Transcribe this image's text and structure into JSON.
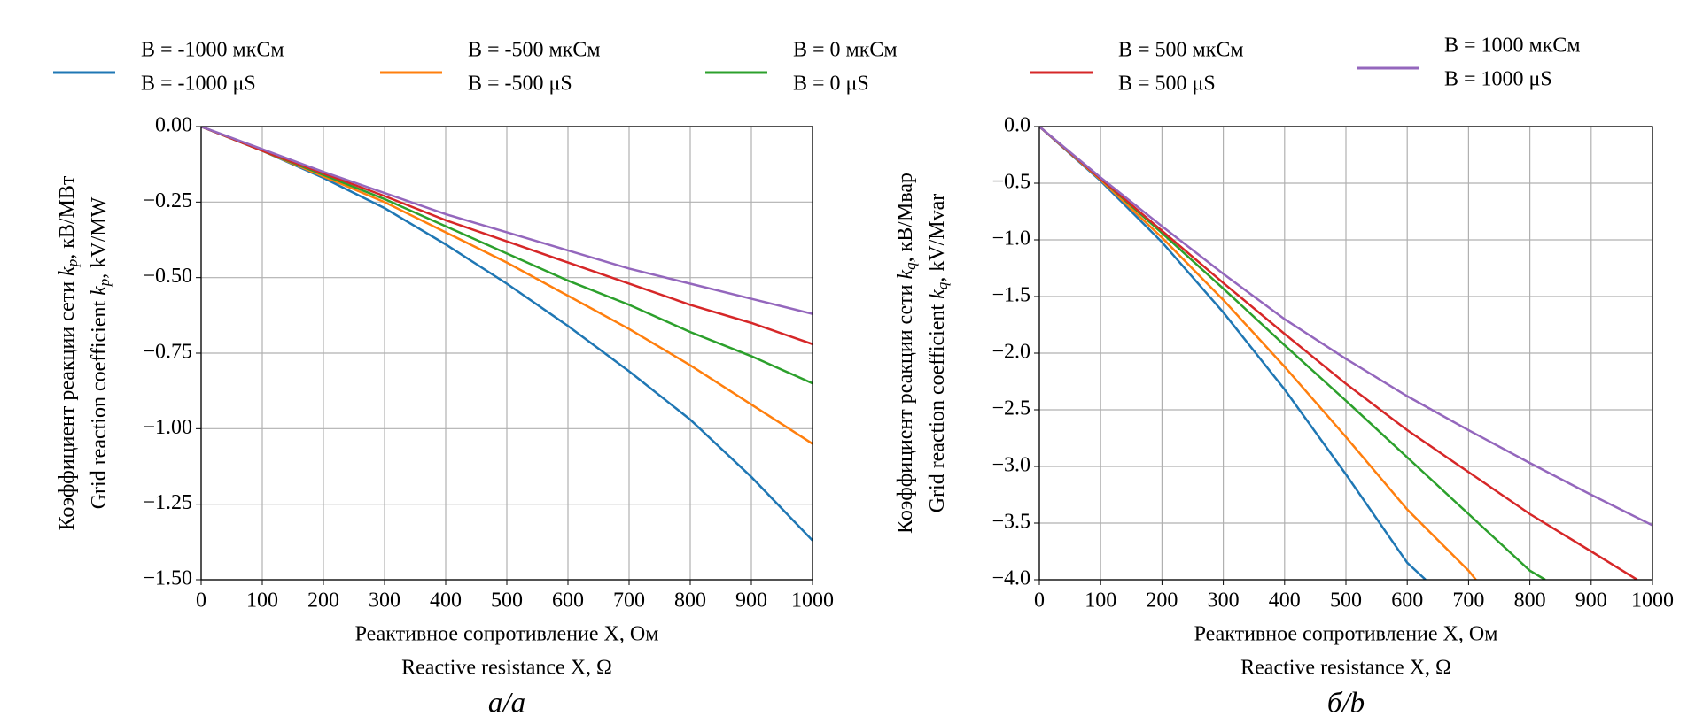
{
  "legend": [
    {
      "label": [
        "B = -1000 мкСм",
        "B = -1000 μS"
      ],
      "color": "#1f77b4"
    },
    {
      "label": [
        "B = -500 мкСм",
        "B = -500 μS"
      ],
      "color": "#ff7f0e"
    },
    {
      "label": [
        "B = 0 мкСм",
        "B = 0 μS"
      ],
      "color": "#2ca02c"
    },
    {
      "label": [
        "B = 500 мкСм",
        "B = 500 μS"
      ],
      "color": "#d62728"
    },
    {
      "label": [
        "B = 1000 мкСм",
        "B = 1000 μS"
      ],
      "color": "#9467bd"
    }
  ],
  "chart_data": [
    {
      "type": "line",
      "caption": "а/a",
      "xlabel": [
        "Реактивное сопротивление X, Ом",
        "Reactive resistance X, Ω"
      ],
      "ylabel": [
        {
          "pre": "Коэффициент реакции сети ",
          "sym": "k",
          "sub": "p",
          "post": ", кВ/МВт"
        },
        {
          "pre": "Grid reaction coefficient ",
          "sym": "k",
          "sub": "p",
          "post": ", kV/MW"
        }
      ],
      "xlim": [
        0,
        1000
      ],
      "ylim": [
        -1.5,
        0
      ],
      "grid": true,
      "xticks": [
        0,
        100,
        200,
        300,
        400,
        500,
        600,
        700,
        800,
        900,
        1000
      ],
      "yticks": [
        {
          "value": 0,
          "label": "0.00"
        },
        {
          "value": -0.25,
          "label": "−0.25"
        },
        {
          "value": -0.5,
          "label": "−0.50"
        },
        {
          "value": -0.75,
          "label": "−0.75"
        },
        {
          "value": -1,
          "label": "−1.00"
        },
        {
          "value": -1.25,
          "label": "−1.25"
        },
        {
          "value": -1.5,
          "label": "−1.50"
        }
      ],
      "x": [
        0,
        100,
        200,
        300,
        400,
        500,
        600,
        700,
        800,
        900,
        1000
      ],
      "series": [
        {
          "color": "#1f77b4",
          "values": [
            0,
            -0.08,
            -0.17,
            -0.27,
            -0.39,
            -0.52,
            -0.66,
            -0.81,
            -0.97,
            -1.16,
            -1.37
          ]
        },
        {
          "color": "#ff7f0e",
          "values": [
            0,
            -0.08,
            -0.165,
            -0.25,
            -0.35,
            -0.45,
            -0.56,
            -0.67,
            -0.79,
            -0.92,
            -1.05
          ]
        },
        {
          "color": "#2ca02c",
          "values": [
            0,
            -0.08,
            -0.16,
            -0.24,
            -0.33,
            -0.42,
            -0.51,
            -0.59,
            -0.68,
            -0.76,
            -0.85
          ]
        },
        {
          "color": "#d62728",
          "values": [
            0,
            -0.08,
            -0.155,
            -0.23,
            -0.31,
            -0.38,
            -0.45,
            -0.52,
            -0.59,
            -0.65,
            -0.72
          ]
        },
        {
          "color": "#9467bd",
          "values": [
            0,
            -0.075,
            -0.15,
            -0.22,
            -0.29,
            -0.35,
            -0.41,
            -0.47,
            -0.52,
            -0.57,
            -0.62
          ]
        }
      ]
    },
    {
      "type": "line",
      "caption": "б/b",
      "xlabel": [
        "Реактивное сопротивление X, Ом",
        "Reactive resistance X, Ω"
      ],
      "ylabel": [
        {
          "pre": "Коэффициент реакции сети ",
          "sym": "k",
          "sub": "q",
          "post": ", кВ/Мвар"
        },
        {
          "pre": "Grid reaction coefficient ",
          "sym": "k",
          "sub": "q",
          "post": ", kV/Mvar"
        }
      ],
      "xlim": [
        0,
        1000
      ],
      "ylim": [
        -4,
        0
      ],
      "grid": true,
      "xticks": [
        0,
        100,
        200,
        300,
        400,
        500,
        600,
        700,
        800,
        900,
        1000
      ],
      "yticks": [
        {
          "value": 0,
          "label": "0.0"
        },
        {
          "value": -0.5,
          "label": "−0.5"
        },
        {
          "value": -1,
          "label": "−1.0"
        },
        {
          "value": -1.5,
          "label": "−1.5"
        },
        {
          "value": -2,
          "label": "−2.0"
        },
        {
          "value": -2.5,
          "label": "−2.5"
        },
        {
          "value": -3,
          "label": "−3.0"
        },
        {
          "value": -3.5,
          "label": "−3.5"
        },
        {
          "value": -4,
          "label": "−4.0"
        }
      ],
      "series": [
        {
          "color": "#1f77b4",
          "x": [
            0,
            100,
            200,
            300,
            400,
            500,
            600,
            630
          ],
          "values": [
            0,
            -0.48,
            -1.02,
            -1.64,
            -2.32,
            -3.07,
            -3.85,
            -4.0
          ]
        },
        {
          "color": "#ff7f0e",
          "x": [
            0,
            100,
            200,
            300,
            400,
            500,
            600,
            700,
            712
          ],
          "values": [
            0,
            -0.47,
            -0.98,
            -1.53,
            -2.12,
            -2.74,
            -3.38,
            -3.92,
            -4.0
          ]
        },
        {
          "color": "#2ca02c",
          "x": [
            0,
            100,
            200,
            300,
            400,
            500,
            600,
            700,
            800,
            825
          ],
          "values": [
            0,
            -0.46,
            -0.94,
            -1.43,
            -1.93,
            -2.42,
            -2.92,
            -3.42,
            -3.92,
            -4.0
          ]
        },
        {
          "color": "#d62728",
          "x": [
            0,
            100,
            200,
            300,
            400,
            500,
            600,
            700,
            800,
            900,
            975
          ],
          "values": [
            0,
            -0.46,
            -0.92,
            -1.38,
            -1.83,
            -2.27,
            -2.68,
            -3.05,
            -3.42,
            -3.75,
            -4.0
          ]
        },
        {
          "color": "#9467bd",
          "x": [
            0,
            100,
            200,
            300,
            400,
            500,
            600,
            700,
            800,
            900,
            1000
          ],
          "values": [
            0,
            -0.45,
            -0.88,
            -1.3,
            -1.7,
            -2.05,
            -2.38,
            -2.68,
            -2.97,
            -3.25,
            -3.52
          ]
        }
      ]
    }
  ]
}
